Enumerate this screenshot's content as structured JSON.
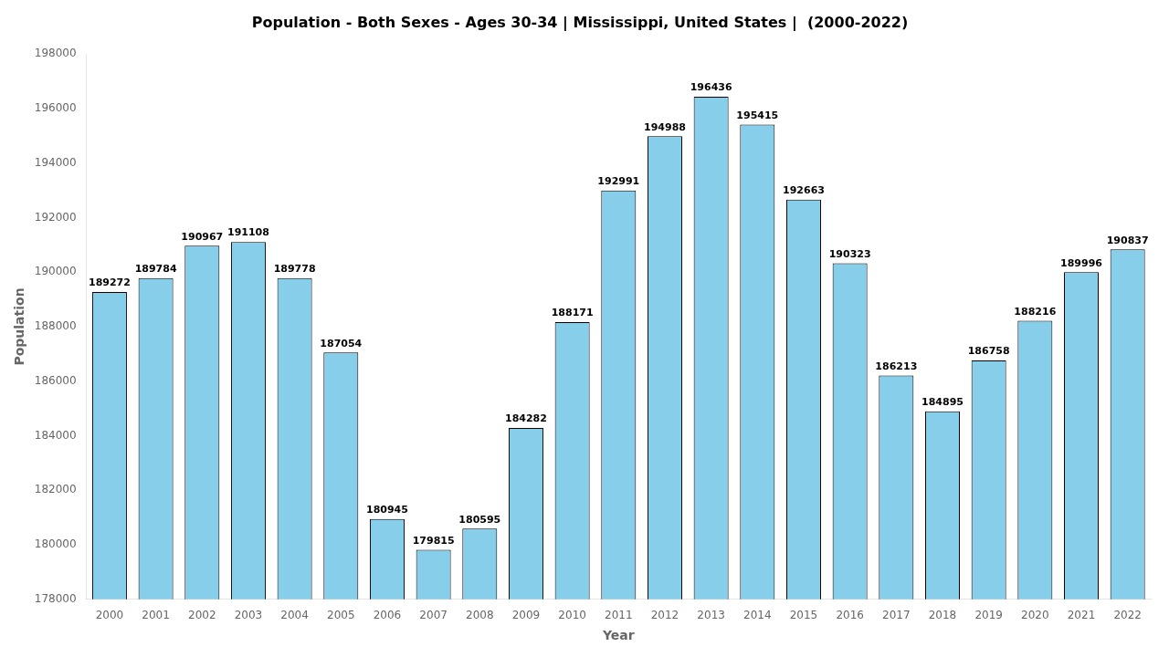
{
  "chart_data": {
    "type": "bar",
    "title": "Population - Both Sexes - Ages 30-34 | Mississippi, United States |  (2000-2022)",
    "xlabel": "Year",
    "ylabel": "Population",
    "categories": [
      "2000",
      "2001",
      "2002",
      "2003",
      "2004",
      "2005",
      "2006",
      "2007",
      "2008",
      "2009",
      "2010",
      "2011",
      "2012",
      "2013",
      "2014",
      "2015",
      "2016",
      "2017",
      "2018",
      "2019",
      "2020",
      "2021",
      "2022"
    ],
    "values": [
      189272,
      189784,
      190967,
      191108,
      189778,
      187054,
      180945,
      179815,
      180595,
      184282,
      188171,
      192991,
      194988,
      196436,
      195415,
      192663,
      190323,
      186213,
      184895,
      186758,
      188216,
      189996,
      190837
    ],
    "color": "#87CEEB",
    "ylim": [
      178000,
      198000
    ],
    "yticks": [
      178000,
      180000,
      182000,
      184000,
      186000,
      188000,
      190000,
      192000,
      194000,
      196000,
      198000
    ],
    "grid": false,
    "data_labels": true
  }
}
